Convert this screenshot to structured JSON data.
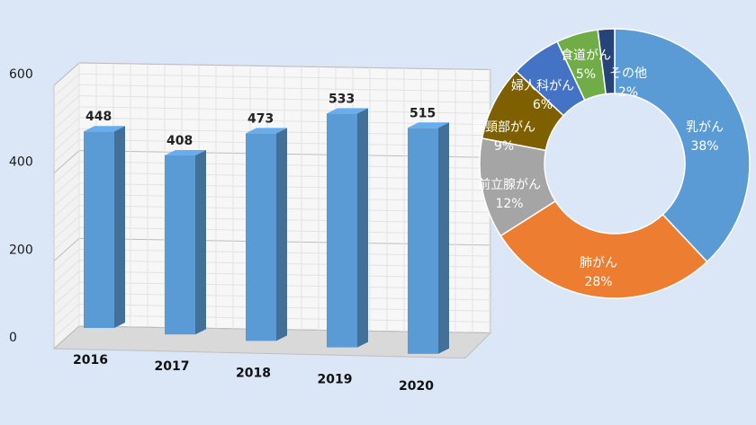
{
  "chart_data": [
    {
      "type": "bar",
      "categories": [
        "2016",
        "2017",
        "2018",
        "2019",
        "2020"
      ],
      "values": [
        448,
        408,
        473,
        533,
        515
      ],
      "data_labels": [
        "448",
        "408",
        "473",
        "533",
        "515"
      ],
      "yticks": [
        "0",
        "200",
        "400",
        "600"
      ],
      "ylim": [
        0,
        600
      ],
      "grid": true,
      "style": "3d",
      "bar_color": "#5b9bd5"
    },
    {
      "type": "pie",
      "donut": true,
      "slices": [
        {
          "label": "乳がん",
          "value": 38,
          "pct_label": "38%",
          "color": "#5b9bd5"
        },
        {
          "label": "肺がん",
          "value": 28,
          "pct_label": "28%",
          "color": "#ed7d31"
        },
        {
          "label": "前立腺がん",
          "value": 12,
          "pct_label": "12%",
          "color": "#a5a5a5"
        },
        {
          "label": "頭頸部がん",
          "value": 9,
          "pct_label": "9%",
          "color": "#7f6000"
        },
        {
          "label": "婦人科がん",
          "value": 6,
          "pct_label": "6%",
          "color": "#4472c4"
        },
        {
          "label": "食道がん",
          "value": 5,
          "pct_label": "5%",
          "color": "#70ad47"
        },
        {
          "label": "その他",
          "value": 2,
          "pct_label": "2%",
          "color": "#264478"
        }
      ]
    }
  ]
}
